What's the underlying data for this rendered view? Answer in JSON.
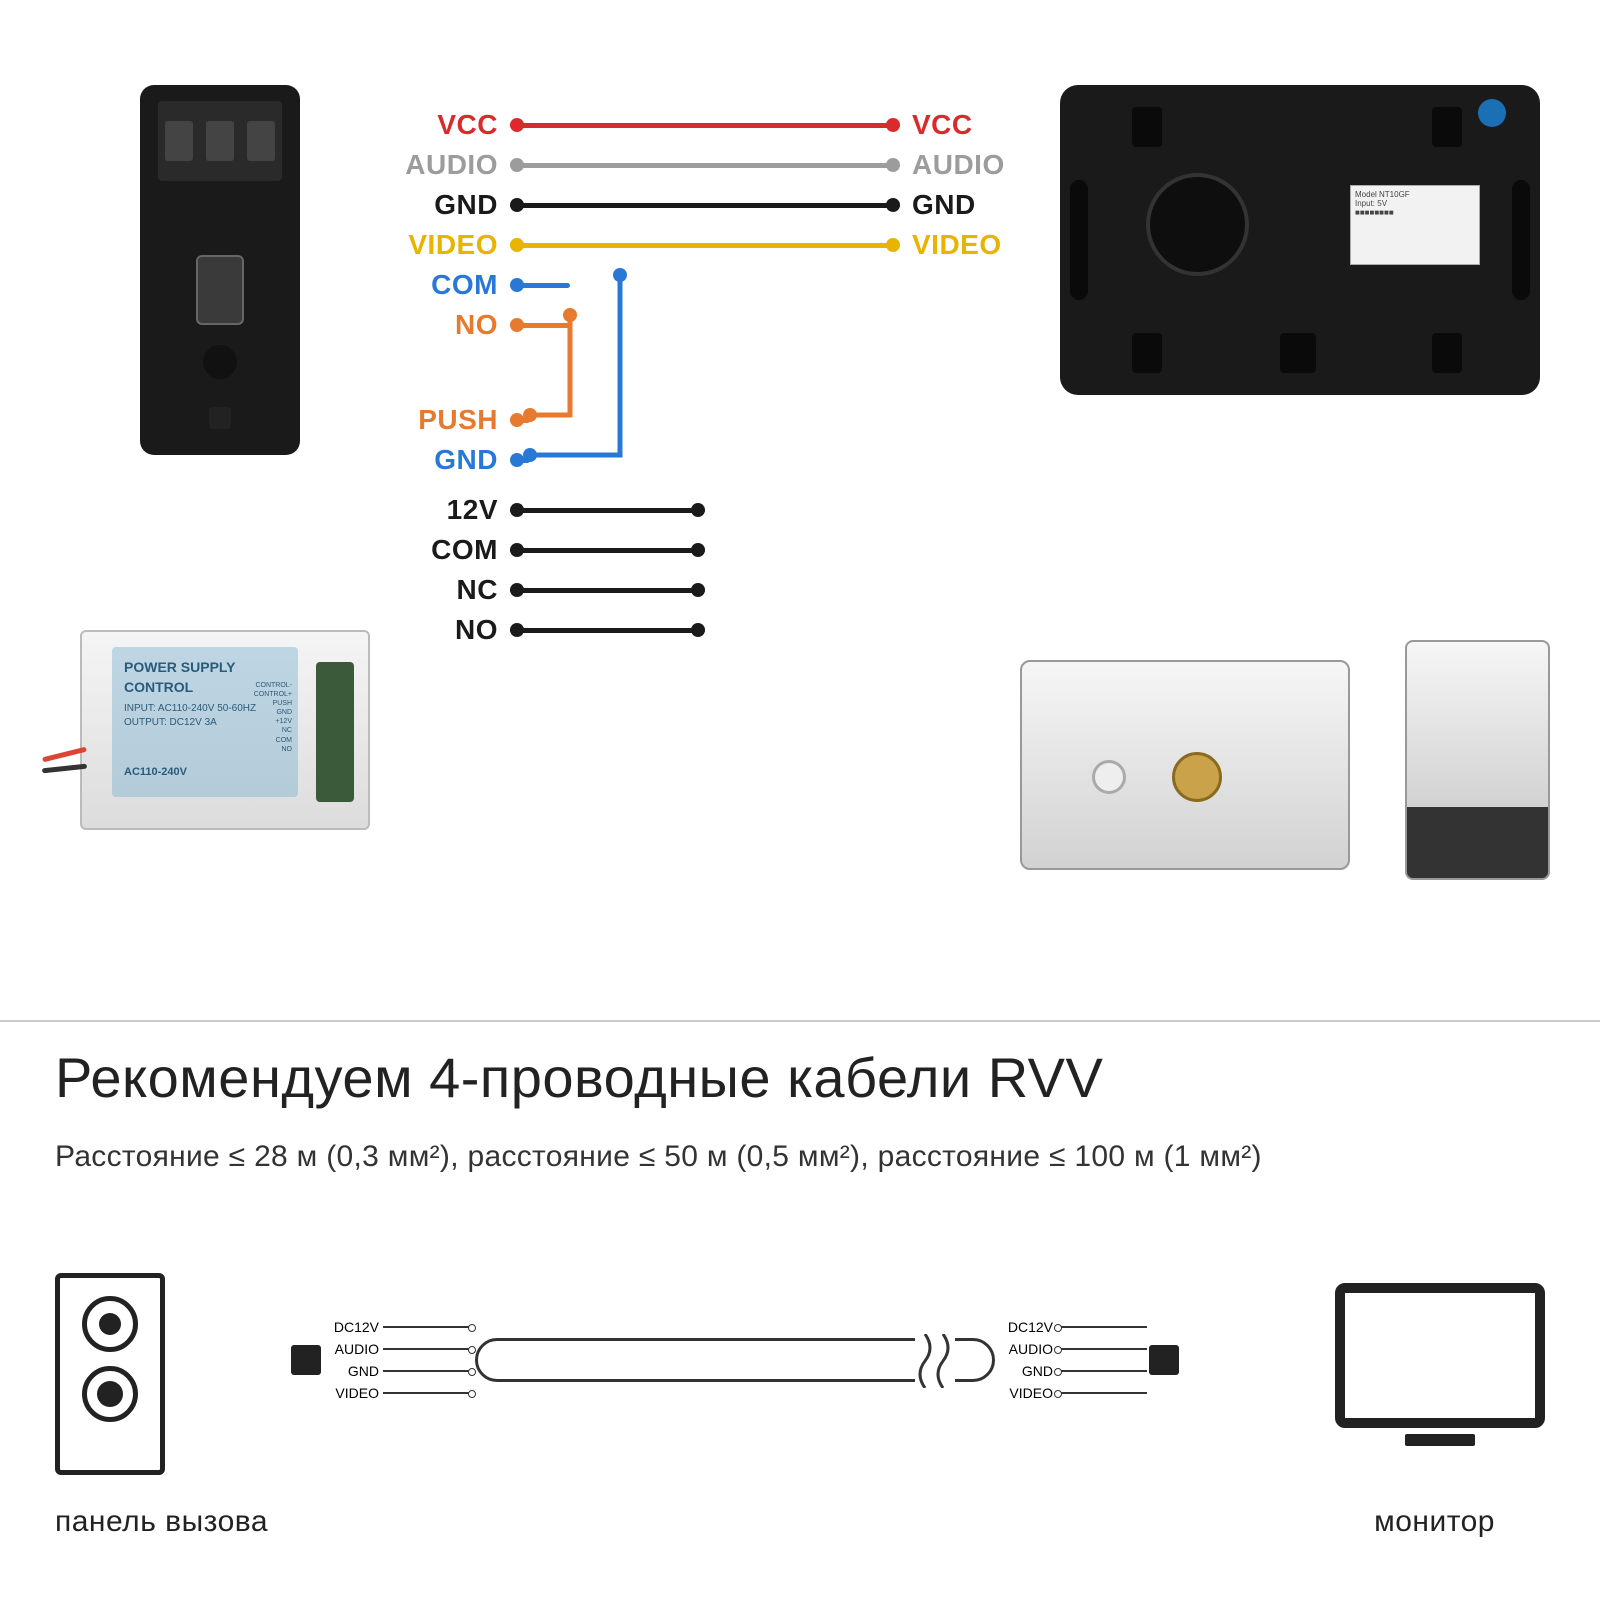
{
  "top_wires": [
    {
      "label_left": "VCC",
      "label_right": "VCC",
      "color": "#d92b2b",
      "short": false
    },
    {
      "label_left": "AUDIO",
      "label_right": "AUDIO",
      "color": "#9c9c9c",
      "short": false
    },
    {
      "label_left": "GND",
      "label_right": "GND",
      "color": "#1a1a1a",
      "short": false
    },
    {
      "label_left": "VIDEO",
      "label_right": "VIDEO",
      "color": "#e8b400",
      "short": false
    },
    {
      "label_left": "COM",
      "label_right": "",
      "color": "#2a78d6",
      "short": true
    },
    {
      "label_left": "NO",
      "label_right": "",
      "color": "#e67a2e",
      "short": true
    }
  ],
  "push_gnd": [
    {
      "label": "PUSH",
      "color": "#e67a2e"
    },
    {
      "label": "GND",
      "color": "#2a78d6"
    }
  ],
  "psu_wires": [
    {
      "label": "12V",
      "color": "#1a1a1a"
    },
    {
      "label": "COM",
      "color": "#1a1a1a"
    },
    {
      "label": "NC",
      "color": "#1a1a1a"
    },
    {
      "label": "NO",
      "color": "#1a1a1a"
    }
  ],
  "psu_text": {
    "title": "POWER SUPPLY CONTROL",
    "l1": "INPUT: AC110-240V 50-60HZ",
    "l2": "OUTPUT: DC12V  3A",
    "l3": "AC110-240V",
    "terms": [
      "CONTROL-",
      "CONTROL+",
      "PUSH",
      "GND",
      "+12V",
      "NC",
      "COM",
      "NO"
    ]
  },
  "heading": "Рекомендуем 4-проводные кабели RVV",
  "subheading": "Расстояние ≤ 28 м (0,3 мм²), расстояние ≤ 50 м (0,5 мм²), расстояние ≤ 100 м (1 мм²)",
  "cable_labels": [
    "DC12V",
    "AUDIO",
    "GND",
    "VIDEO"
  ],
  "caption_left": "панель вызова",
  "caption_right": "монитор",
  "colors": {
    "bg": "#ffffff"
  }
}
